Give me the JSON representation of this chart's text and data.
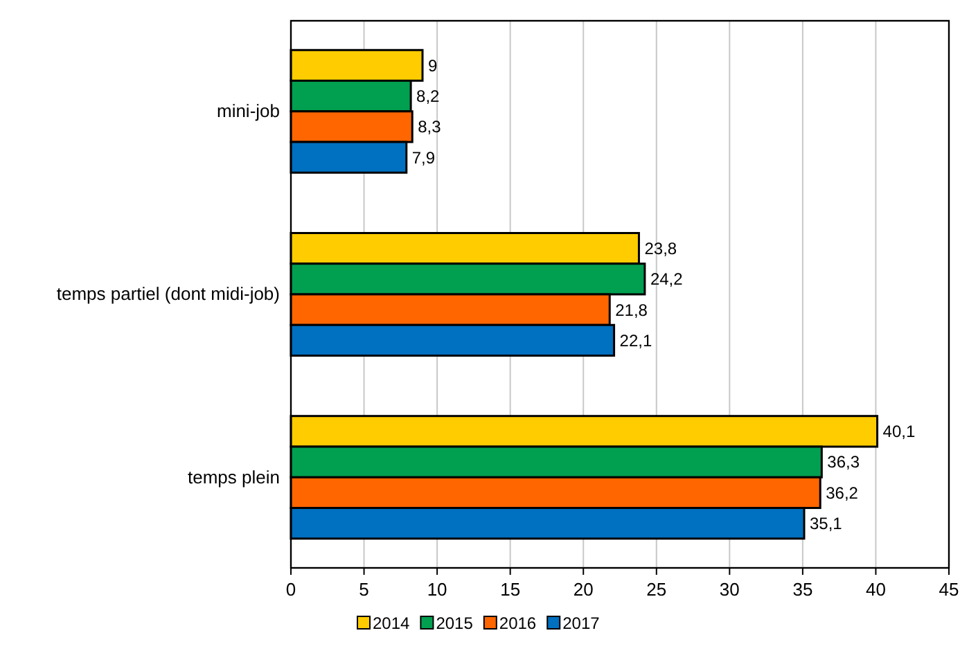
{
  "chart_data": {
    "type": "bar",
    "orientation": "horizontal",
    "categories": [
      "mini-job",
      "temps partiel (dont midi-job)",
      "temps plein"
    ],
    "series": [
      {
        "name": "2014",
        "color": "#ffcc00",
        "values": [
          9,
          23.8,
          40.1
        ],
        "value_labels": [
          "9",
          "23,8",
          "40,1"
        ]
      },
      {
        "name": "2015",
        "color": "#00a050",
        "values": [
          8.2,
          24.2,
          36.3
        ],
        "value_labels": [
          "8,2",
          "24,2",
          "36,3"
        ]
      },
      {
        "name": "2016",
        "color": "#ff6600",
        "values": [
          8.3,
          21.8,
          36.2
        ],
        "value_labels": [
          "8,3",
          "21,8",
          "36,2"
        ]
      },
      {
        "name": "2017",
        "color": "#0070c0",
        "values": [
          7.9,
          22.1,
          35.1
        ],
        "value_labels": [
          "7,9",
          "22,1",
          "35,1"
        ]
      }
    ],
    "xlim": [
      0,
      45
    ],
    "xticks": [
      0,
      5,
      10,
      15,
      20,
      25,
      30,
      35,
      40,
      45
    ],
    "grid": "x",
    "legend": "bottom"
  }
}
